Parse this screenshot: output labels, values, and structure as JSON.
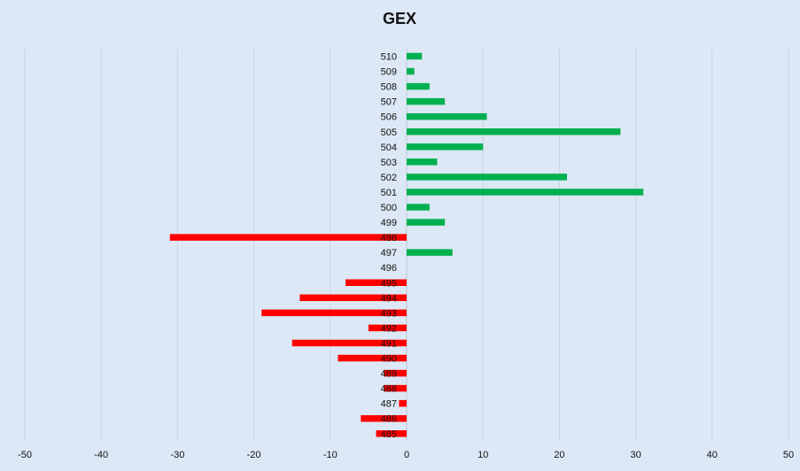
{
  "chart_data": {
    "type": "bar",
    "orientation": "horizontal",
    "title": "GEX",
    "xlabel": "",
    "ylabel": "",
    "xlim": [
      -50,
      50
    ],
    "x_ticks": [
      "-50",
      "-40",
      "-30",
      "-20",
      "-10",
      "0",
      "10",
      "20",
      "30",
      "40",
      "50"
    ],
    "grid": true,
    "legend": "none",
    "categories": [
      "510",
      "509",
      "508",
      "507",
      "506",
      "505",
      "504",
      "503",
      "502",
      "501",
      "500",
      "499",
      "498",
      "497",
      "496",
      "495",
      "494",
      "493",
      "492",
      "491",
      "490",
      "489",
      "488",
      "487",
      "486",
      "485"
    ],
    "values": [
      2,
      1,
      3,
      5,
      10.5,
      28,
      10,
      4,
      21,
      31,
      3,
      5,
      -31,
      6,
      0,
      -8,
      -14,
      -19,
      -5,
      -15,
      -9,
      -3,
      -3,
      -1,
      -6,
      -4
    ],
    "colors": {
      "positive": "#00b050",
      "negative": "#ff0000",
      "background": "#dce8f5",
      "grid": "#c8d4e2"
    }
  }
}
